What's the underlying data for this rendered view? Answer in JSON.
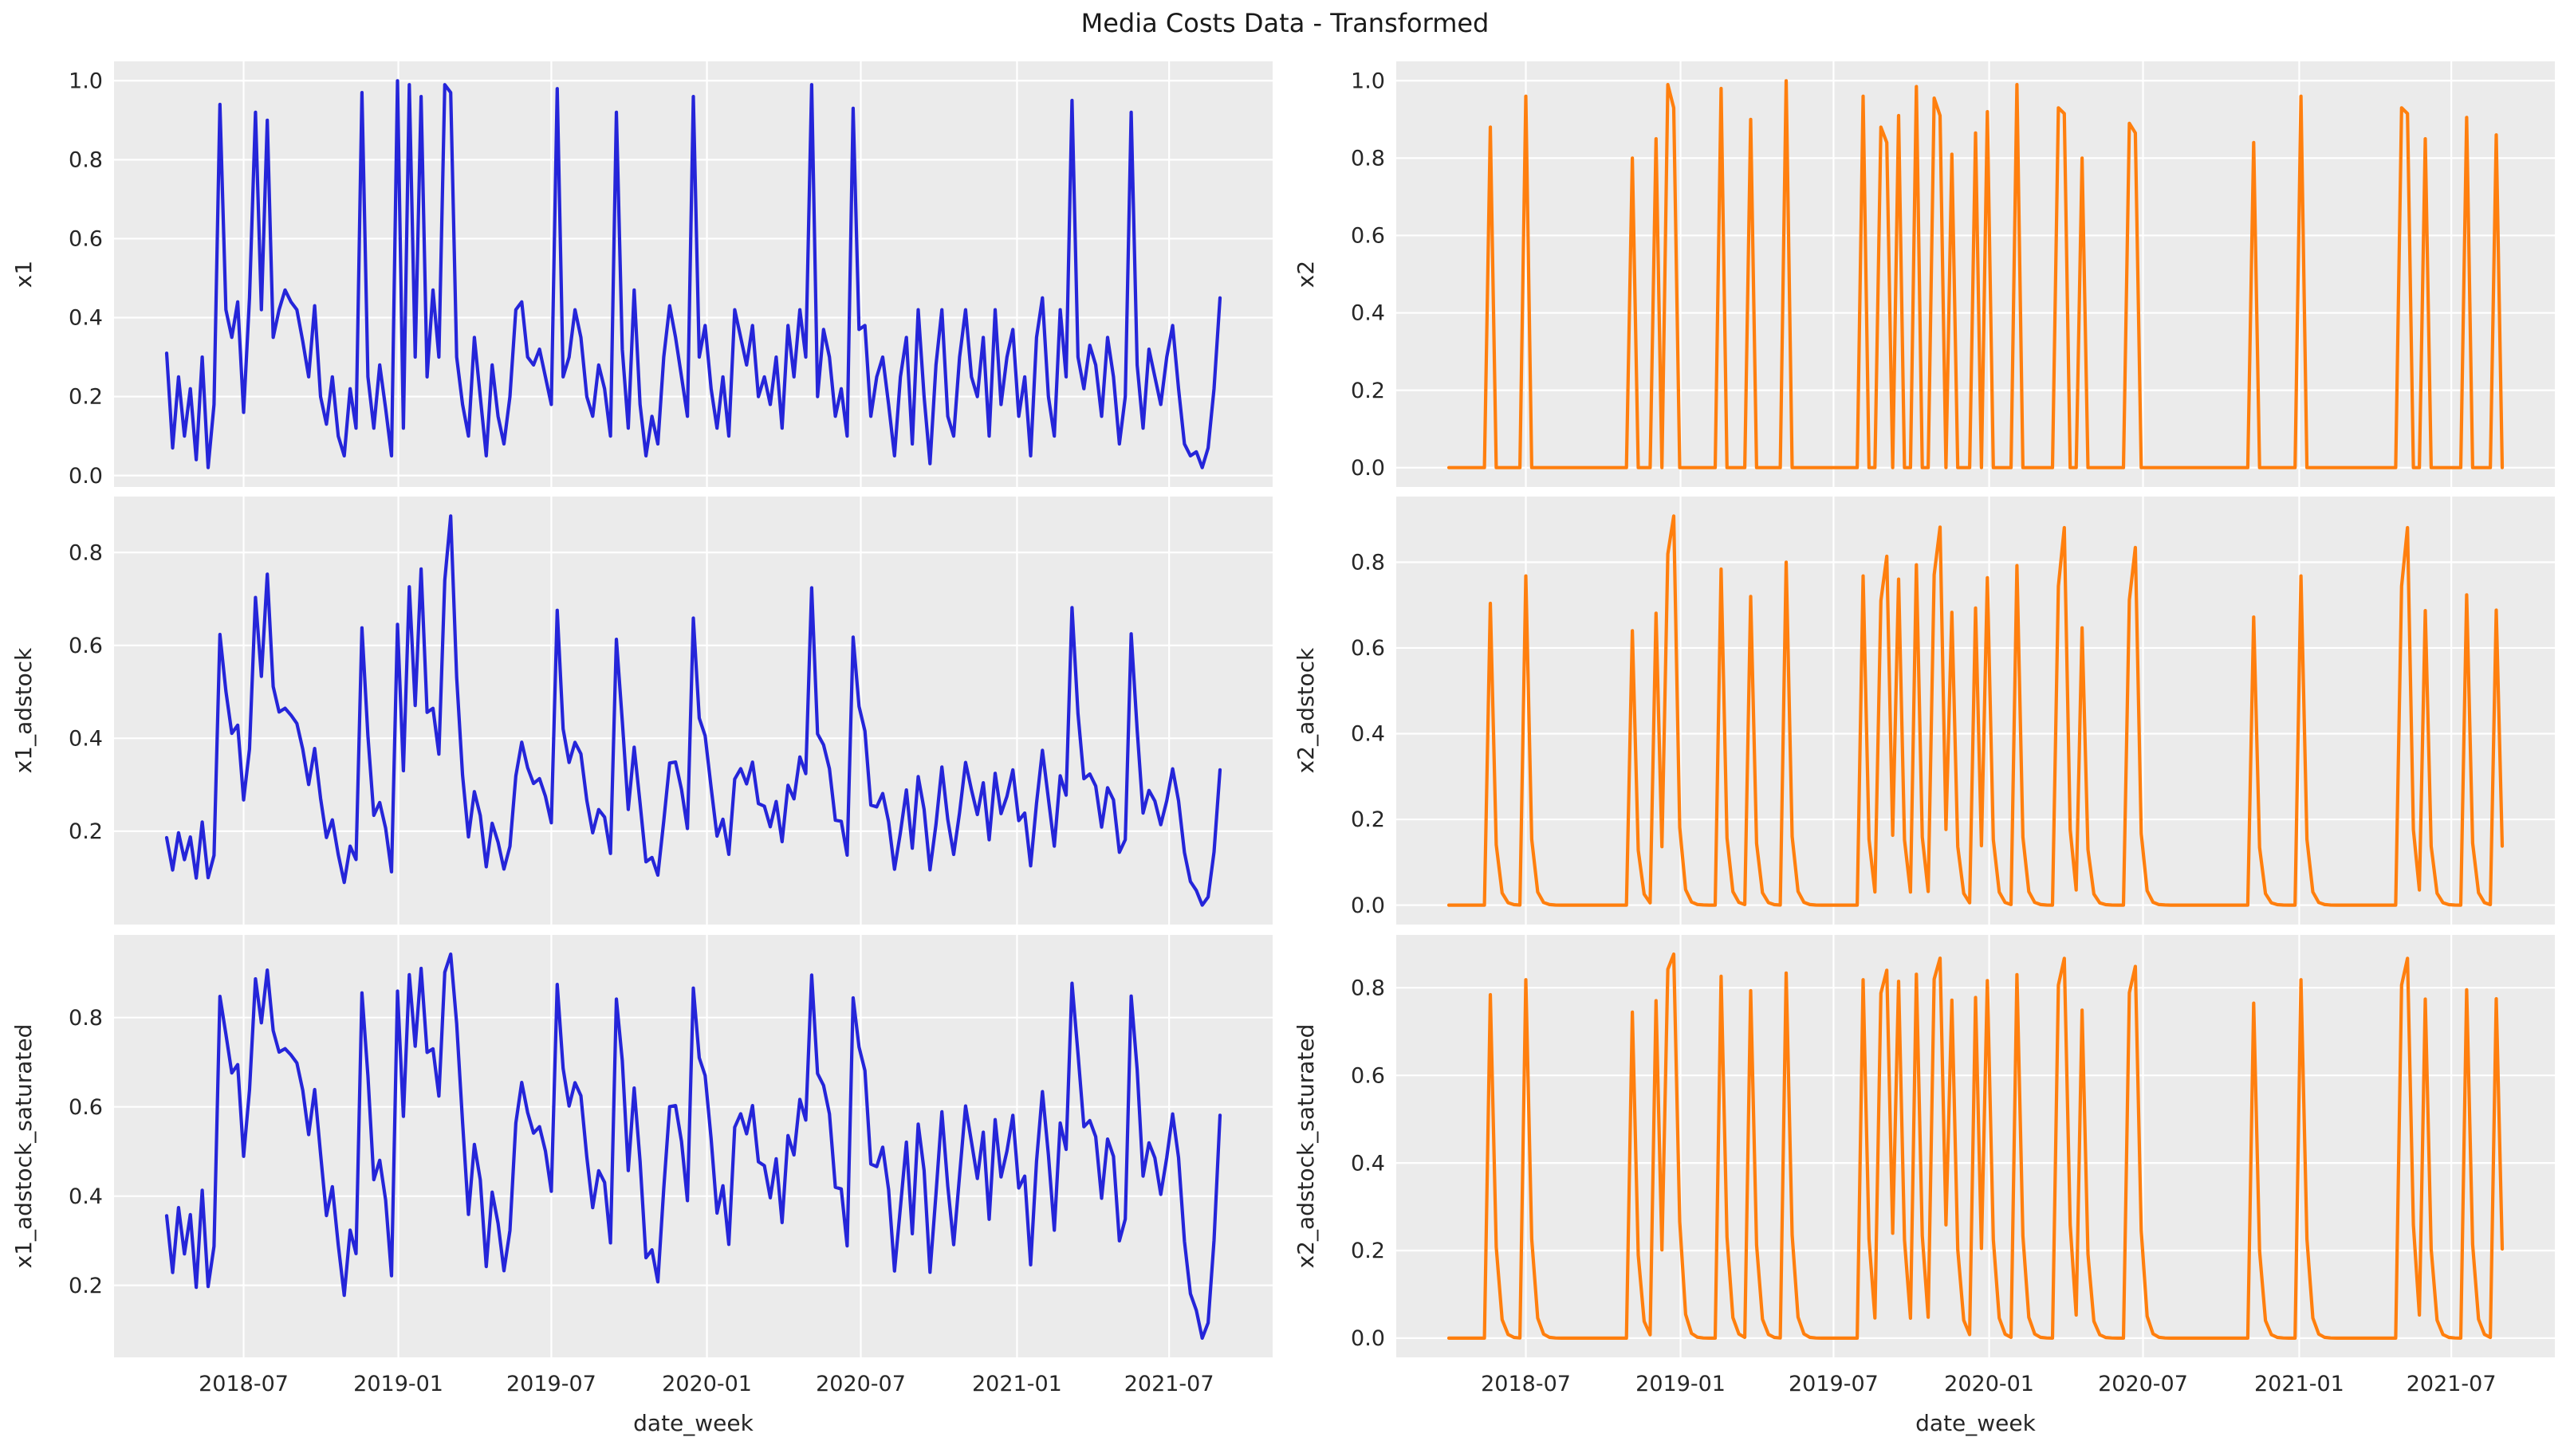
{
  "figure": {
    "title": "Media Costs Data - Transformed",
    "background": "#ffffff",
    "panel_background": "#ebebeb",
    "gridline_color": "#ffffff",
    "text_color": "#262626",
    "line_colors": {
      "x1_series": "#2525d9",
      "x2_series": "#ff7f0e"
    }
  },
  "chart_data": {
    "type": "line",
    "title": "Media Costs Data - Transformed",
    "layout": "3 rows x 2 cols, shared weekly x-axis per column, grid on, no legend",
    "x": {
      "label": "date_week",
      "start_date": "2018-04-02",
      "frequency": "weekly",
      "n_weeks": 179,
      "ticks": [
        {
          "label": "2018-07",
          "week": 13.0
        },
        {
          "label": "2019-01",
          "week": 39.15
        },
        {
          "label": "2019-07",
          "week": 65.0
        },
        {
          "label": "2020-01",
          "week": 91.3
        },
        {
          "label": "2020-07",
          "week": 117.3
        },
        {
          "label": "2021-01",
          "week": 143.7
        },
        {
          "label": "2021-07",
          "week": 169.4
        }
      ]
    },
    "series_x1": [
      0.31,
      0.07,
      0.25,
      0.1,
      0.22,
      0.04,
      0.3,
      0.02,
      0.18,
      0.94,
      0.42,
      0.35,
      0.44,
      0.16,
      0.45,
      0.92,
      0.42,
      0.9,
      0.35,
      0.42,
      0.47,
      0.44,
      0.42,
      0.34,
      0.25,
      0.43,
      0.2,
      0.13,
      0.25,
      0.1,
      0.05,
      0.22,
      0.12,
      0.97,
      0.25,
      0.12,
      0.28,
      0.17,
      0.05,
      1.0,
      0.12,
      0.99,
      0.3,
      0.96,
      0.25,
      0.47,
      0.3,
      0.99,
      0.97,
      0.3,
      0.18,
      0.1,
      0.35,
      0.2,
      0.05,
      0.28,
      0.15,
      0.08,
      0.2,
      0.42,
      0.44,
      0.3,
      0.28,
      0.32,
      0.25,
      0.18,
      0.98,
      0.25,
      0.3,
      0.42,
      0.35,
      0.2,
      0.15,
      0.28,
      0.22,
      0.1,
      0.92,
      0.32,
      0.12,
      0.47,
      0.18,
      0.05,
      0.15,
      0.08,
      0.3,
      0.43,
      0.35,
      0.25,
      0.15,
      0.96,
      0.3,
      0.38,
      0.22,
      0.12,
      0.25,
      0.1,
      0.42,
      0.35,
      0.28,
      0.38,
      0.2,
      0.25,
      0.18,
      0.3,
      0.12,
      0.38,
      0.25,
      0.42,
      0.3,
      0.99,
      0.2,
      0.37,
      0.3,
      0.15,
      0.22,
      0.1,
      0.93,
      0.37,
      0.38,
      0.15,
      0.25,
      0.3,
      0.18,
      0.05,
      0.25,
      0.35,
      0.08,
      0.42,
      0.2,
      0.03,
      0.28,
      0.42,
      0.15,
      0.1,
      0.3,
      0.42,
      0.25,
      0.2,
      0.35,
      0.1,
      0.42,
      0.18,
      0.3,
      0.37,
      0.15,
      0.25,
      0.05,
      0.35,
      0.45,
      0.2,
      0.1,
      0.42,
      0.25,
      0.95,
      0.3,
      0.22,
      0.33,
      0.28,
      0.15,
      0.35,
      0.25,
      0.08,
      0.2,
      0.92,
      0.28,
      0.12,
      0.32,
      0.25,
      0.18,
      0.3,
      0.38,
      0.22,
      0.08,
      0.05,
      0.06,
      0.02,
      0.07,
      0.22,
      0.45
    ],
    "series_x2": [
      0,
      0,
      0,
      0,
      0,
      0,
      0,
      0.88,
      0,
      0,
      0,
      0,
      0,
      0.96,
      0,
      0,
      0,
      0,
      0,
      0,
      0,
      0,
      0,
      0,
      0,
      0,
      0,
      0,
      0,
      0,
      0,
      0.8,
      0,
      0,
      0,
      0.85,
      0,
      0.99,
      0.93,
      0,
      0,
      0,
      0,
      0,
      0,
      0,
      0.98,
      0,
      0,
      0,
      0,
      0.9,
      0,
      0,
      0,
      0,
      0,
      1.0,
      0,
      0,
      0,
      0,
      0,
      0,
      0,
      0,
      0,
      0,
      0,
      0,
      0.96,
      0,
      0,
      0.88,
      0.84,
      0,
      0.91,
      0,
      0,
      0.985,
      0,
      0,
      0.955,
      0.91,
      0,
      0.81,
      0,
      0,
      0,
      0.865,
      0,
      0.92,
      0,
      0,
      0,
      0,
      0.99,
      0,
      0,
      0,
      0,
      0,
      0,
      0.93,
      0.915,
      0,
      0,
      0.8,
      0,
      0,
      0,
      0,
      0,
      0,
      0,
      0.89,
      0.865,
      0,
      0,
      0,
      0,
      0,
      0,
      0,
      0,
      0,
      0,
      0,
      0,
      0,
      0,
      0,
      0,
      0,
      0,
      0,
      0.84,
      0,
      0,
      0,
      0,
      0,
      0,
      0,
      0.96,
      0,
      0,
      0,
      0,
      0,
      0,
      0,
      0,
      0,
      0,
      0,
      0,
      0,
      0,
      0,
      0,
      0.93,
      0.915,
      0,
      0,
      0.85,
      0,
      0,
      0,
      0,
      0,
      0,
      0.905,
      0,
      0,
      0,
      0,
      0.86,
      0
    ],
    "subplots": [
      {
        "row": 0,
        "col": 0,
        "ylabel": "x1",
        "color": "#2525d9",
        "yticks": [
          0.0,
          0.2,
          0.4,
          0.6,
          0.8,
          1.0
        ],
        "source": "series_x1",
        "transform": "none"
      },
      {
        "row": 1,
        "col": 0,
        "ylabel": "x1_adstock",
        "color": "#2525d9",
        "yticks": [
          0.2,
          0.4,
          0.6,
          0.8
        ],
        "source": "series_x1",
        "transform": "geometric_adstock",
        "alpha": 0.4,
        "l_max": 8,
        "normalize": true
      },
      {
        "row": 2,
        "col": 0,
        "ylabel": "x1_adstock_saturated",
        "color": "#2525d9",
        "yticks": [
          0.2,
          0.4,
          0.6,
          0.8
        ],
        "source": "series_x1",
        "transform": "geometric_adstock+logistic_saturation",
        "alpha": 0.4,
        "l_max": 8,
        "normalize": true,
        "lam": 4.0
      },
      {
        "row": 0,
        "col": 1,
        "ylabel": "x2",
        "color": "#ff7f0e",
        "yticks": [
          0.0,
          0.2,
          0.4,
          0.6,
          0.8,
          1.0
        ],
        "source": "series_x2",
        "transform": "none"
      },
      {
        "row": 1,
        "col": 1,
        "ylabel": "x2_adstock",
        "color": "#ff7f0e",
        "yticks": [
          0.0,
          0.2,
          0.4,
          0.6,
          0.8
        ],
        "source": "series_x2",
        "transform": "geometric_adstock",
        "alpha": 0.2,
        "l_max": 8,
        "normalize": true
      },
      {
        "row": 2,
        "col": 1,
        "ylabel": "x2_adstock_saturated",
        "color": "#ff7f0e",
        "yticks": [
          0.0,
          0.2,
          0.4,
          0.6,
          0.8
        ],
        "source": "series_x2",
        "transform": "geometric_adstock+logistic_saturation",
        "alpha": 0.2,
        "l_max": 8,
        "normalize": true,
        "lam": 3.0
      }
    ]
  }
}
